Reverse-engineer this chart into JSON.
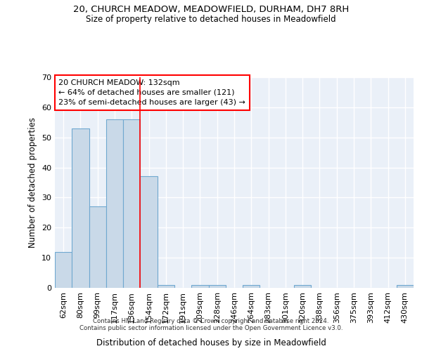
{
  "title_line1": "20, CHURCH MEADOW, MEADOWFIELD, DURHAM, DH7 8RH",
  "title_line2": "Size of property relative to detached houses in Meadowfield",
  "xlabel": "Distribution of detached houses by size in Meadowfield",
  "ylabel": "Number of detached properties",
  "categories": [
    "62sqm",
    "80sqm",
    "99sqm",
    "117sqm",
    "136sqm",
    "154sqm",
    "172sqm",
    "191sqm",
    "209sqm",
    "228sqm",
    "246sqm",
    "264sqm",
    "283sqm",
    "301sqm",
    "320sqm",
    "338sqm",
    "356sqm",
    "375sqm",
    "393sqm",
    "412sqm",
    "430sqm"
  ],
  "values": [
    12,
    53,
    27,
    56,
    56,
    37,
    1,
    0,
    1,
    1,
    0,
    1,
    0,
    0,
    1,
    0,
    0,
    0,
    0,
    0,
    1
  ],
  "bar_color": "#c9d9e8",
  "bar_edge_color": "#6fa8d0",
  "red_line_x": 4.5,
  "annotation_text": "20 CHURCH MEADOW: 132sqm\n← 64% of detached houses are smaller (121)\n23% of semi-detached houses are larger (43) →",
  "annotation_box_color": "white",
  "annotation_box_edge_color": "red",
  "ylim": [
    0,
    70
  ],
  "yticks": [
    0,
    10,
    20,
    30,
    40,
    50,
    60,
    70
  ],
  "background_color": "#eaf0f8",
  "grid_color": "white",
  "footer_line1": "Contains HM Land Registry data © Crown copyright and database right 2024.",
  "footer_line2": "Contains public sector information licensed under the Open Government Licence v3.0."
}
